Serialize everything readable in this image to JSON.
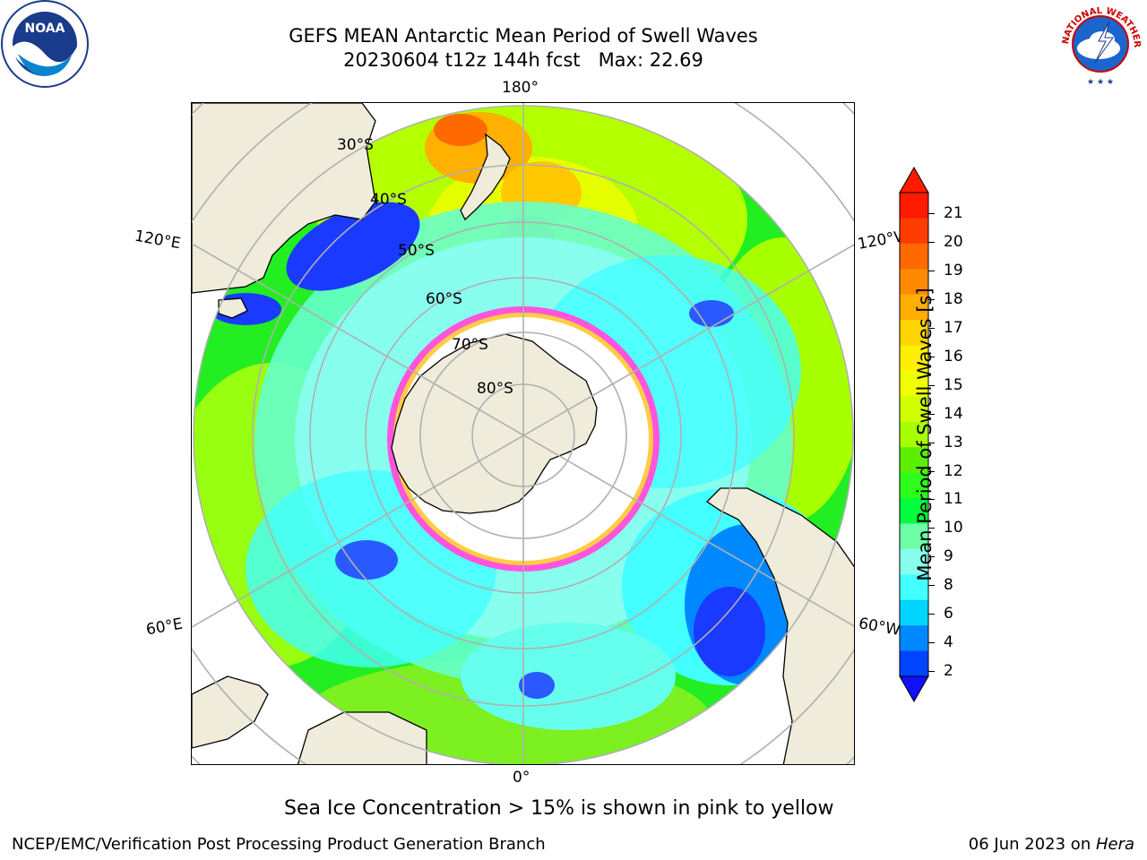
{
  "title_line1": "GEFS MEAN Antarctic Mean Period of Swell Waves",
  "title_line2": "20230604 t12z 144h fcst   Max: 22.69",
  "map": {
    "longitude_labels": {
      "top": "180°",
      "bottom": "0°",
      "left_upper": "120°E",
      "left_lower": "60°E",
      "right_upper": "120°W",
      "right_lower": "60°W"
    },
    "latitude_labels": [
      "30°S",
      "40°S",
      "50°S",
      "60°S",
      "70°S",
      "80°S"
    ],
    "colors": {
      "land": "#efecdb",
      "ice_edge": "#ff55dd",
      "grid": "#b0b0b0"
    }
  },
  "colorbar": {
    "label": "Mean Period of Swell Waves [s]",
    "ticks": [
      "21",
      "20",
      "19",
      "18",
      "17",
      "16",
      "15",
      "14",
      "13",
      "12",
      "11",
      "10",
      "9",
      "8",
      "6",
      "4",
      "2"
    ],
    "colors_top_to_bottom": [
      "#ff1a00",
      "#ff3c00",
      "#ff6a00",
      "#ff8a00",
      "#ffae00",
      "#ffd400",
      "#fff000",
      "#f0ff00",
      "#d2ff00",
      "#a8ff00",
      "#5cf000",
      "#2cff1a",
      "#00ff3c",
      "#6cffa8",
      "#88ffee",
      "#44ffff",
      "#00d6ff",
      "#0088ff",
      "#0044ff"
    ],
    "extend_top_color": "#ff1a00",
    "extend_bottom_color": "#1010ff"
  },
  "note": "Sea Ice Concentration > 15% is shown in pink to yellow",
  "footer": {
    "left": "NCEP/EMC/Verification Post Processing Product Generation Branch",
    "date": "06 Jun 2023 on ",
    "host": "Hera"
  },
  "logos": {
    "left": "NOAA",
    "right": "NATIONAL WEATHER SERVICE"
  }
}
